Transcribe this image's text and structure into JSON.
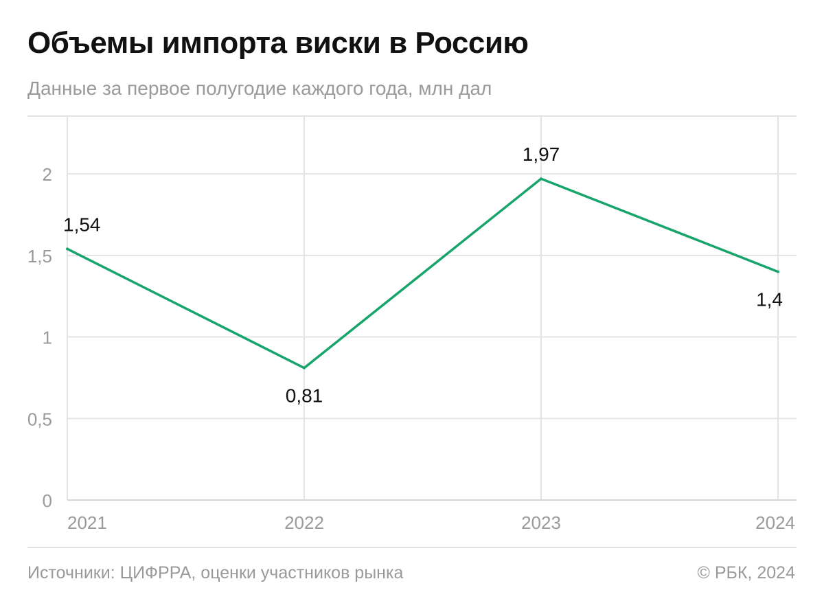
{
  "header": {
    "title": "Объемы импорта виски в Россию",
    "subtitle": "Данные за первое полугодие каждого года, млн дал"
  },
  "footer": {
    "source": "Источники: ЦИФРРА, оценки участников рынка",
    "copyright": "© РБК, 2024"
  },
  "colors": {
    "line": "#17a56b",
    "grid": "#e4e4e4",
    "axis_text": "#9a9a9a",
    "label_text": "#111111"
  },
  "chart_data": {
    "type": "line",
    "title": "Объемы импорта виски в Россию",
    "subtitle": "Данные за первое полугодие каждого года, млн дал",
    "categories": [
      "2021",
      "2022",
      "2023",
      "2024"
    ],
    "series": [
      {
        "values": [
          1.54,
          0.81,
          1.97,
          1.4
        ]
      }
    ],
    "data_labels": [
      "1,54",
      "0,81",
      "1,97",
      "1,4"
    ],
    "label_positions": [
      "above",
      "below",
      "above",
      "below"
    ],
    "y_ticks": [
      0,
      0.5,
      1,
      1.5,
      2
    ],
    "y_tick_labels": [
      "0",
      "0,5",
      "1",
      "1,5",
      "2"
    ],
    "ylim": [
      0,
      2.35
    ],
    "grid": true,
    "legend": "none",
    "xlabel": "",
    "ylabel": ""
  }
}
